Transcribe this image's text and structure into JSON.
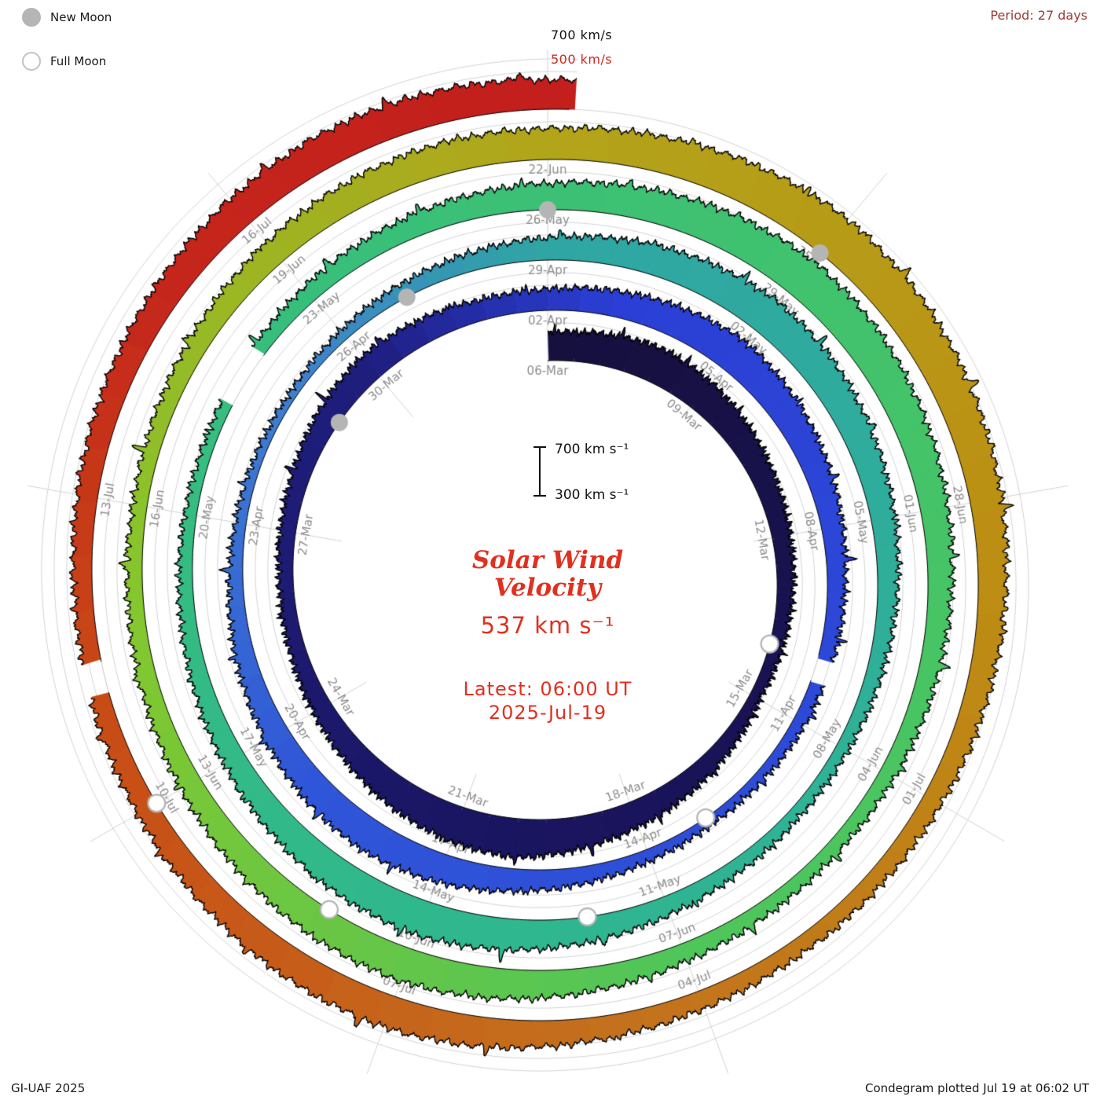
{
  "legend": {
    "new_moon": "New Moon",
    "full_moon": "Full Moon"
  },
  "corner": {
    "period": "Period: 27 days",
    "credit": "GI-UAF 2025",
    "plotted": "Condegram plotted Jul 19 at 06:02 UT"
  },
  "radial_labels": {
    "outer": "700 km/s",
    "inner": "500 km/s"
  },
  "scale_bar": {
    "top": "700 km s⁻¹",
    "bottom": "300 km s⁻¹",
    "min_kms": 300,
    "max_kms": 700
  },
  "center": {
    "title_line1": "Solar Wind",
    "title_line2": "Velocity",
    "current_value": "537 km s⁻¹",
    "latest_line1": "Latest: 06:00 UT",
    "latest_line2": "2025-Jul-19"
  },
  "chart_data": {
    "type": "line",
    "style": "condegram-spiral",
    "title": "Solar Wind Velocity",
    "start_date": "2025-03-06",
    "end_date": "2025-07-19",
    "latest_time_ut": "06:00",
    "period_days": 27,
    "velocity_range_kms": [
      300,
      700
    ],
    "grid_velocities": [
      300,
      400,
      500,
      600,
      700
    ],
    "daily_velocity_kms": [
      520,
      555,
      585,
      560,
      520,
      480,
      450,
      430,
      410,
      390,
      430,
      470,
      510,
      560,
      610,
      590,
      550,
      500,
      460,
      430,
      415,
      425,
      450,
      490,
      520,
      495,
      465,
      470,
      505,
      545,
      580,
      550,
      510,
      470,
      440,
      420,
      400,
      380,
      370,
      395,
      435,
      480,
      530,
      560,
      540,
      500,
      460,
      420,
      390,
      370,
      360,
      385,
      415,
      445,
      480,
      520,
      560,
      590,
      570,
      530,
      490,
      455,
      425,
      400,
      390,
      410,
      450,
      500,
      550,
      580,
      560,
      520,
      480,
      445,
      415,
      395,
      385,
      405,
      435,
      465,
      490,
      510,
      550,
      590,
      620,
      600,
      560,
      520,
      485,
      455,
      425,
      405,
      415,
      445,
      490,
      540,
      570,
      550,
      515,
      475,
      445,
      425,
      415,
      435,
      465,
      500,
      530,
      550,
      545,
      580,
      620,
      650,
      630,
      590,
      555,
      515,
      485,
      455,
      435,
      425,
      445,
      480,
      530,
      560,
      540,
      505,
      475,
      455,
      445,
      465,
      490,
      520,
      550,
      570,
      560,
      537
    ],
    "tick_days": [
      0,
      3,
      6,
      9,
      12,
      15,
      18,
      21,
      24,
      27,
      30,
      33,
      36,
      39,
      42,
      45,
      48,
      51,
      54,
      57,
      60,
      63,
      66,
      69,
      72,
      75,
      78,
      81,
      84,
      87,
      90,
      93,
      96,
      99,
      102,
      105,
      108,
      111,
      114,
      117,
      120,
      123,
      126,
      129,
      132
    ],
    "tick_labels": [
      "06-Mar",
      "09-Mar",
      "12-Mar",
      "15-Mar",
      "18-Mar",
      "21-Mar",
      "24-Mar",
      "27-Mar",
      "30-Mar",
      "02-Apr",
      "05-Apr",
      "08-Apr",
      "11-Apr",
      "14-Apr",
      "17-Apr",
      "20-Apr",
      "23-Apr",
      "26-Apr",
      "29-Apr",
      "02-May",
      "05-May",
      "08-May",
      "11-May",
      "14-May",
      "17-May",
      "20-May",
      "23-May",
      "26-May",
      "29-May",
      "01-Jun",
      "04-Jun",
      "07-Jun",
      "10-Jun",
      "13-Jun",
      "16-Jun",
      "19-Jun",
      "22-Jun",
      "25-Jun",
      "28-Jun",
      "01-Jul",
      "04-Jul",
      "07-Jul",
      "10-Jul",
      "13-Jul",
      "16-Jul"
    ],
    "gaps_days": [
      [
        35.0,
        35.35
      ],
      [
        76.4,
        77.1
      ],
      [
        127.15,
        127.45
      ]
    ],
    "new_moon_days": [
      23,
      52,
      81,
      111
    ],
    "full_moon_days": [
      8,
      38,
      67,
      97,
      126
    ],
    "end_day_fraction": 135.25,
    "colormap": [
      [
        0,
        "#16103e"
      ],
      [
        14,
        "#1a1560"
      ],
      [
        24,
        "#1f1e7e"
      ],
      [
        28,
        "#2b3fd6"
      ],
      [
        44,
        "#2f55d8"
      ],
      [
        50,
        "#3f7fce"
      ],
      [
        54,
        "#2fa6a4"
      ],
      [
        68,
        "#2fb78f"
      ],
      [
        80,
        "#3ac077"
      ],
      [
        93,
        "#4fc65a"
      ],
      [
        101,
        "#85c72d"
      ],
      [
        108,
        "#b2a51a"
      ],
      [
        115,
        "#bd8d13"
      ],
      [
        121,
        "#c4701d"
      ],
      [
        127,
        "#c84b15"
      ],
      [
        131,
        "#c5261b"
      ],
      [
        136,
        "#c21d1c"
      ]
    ],
    "colors": {
      "grid": "#d2d2d2",
      "tick_label": "#8c8c8c",
      "moon": "#b5b5b5",
      "outline": "#000000",
      "accent_red": "#e03020"
    }
  }
}
